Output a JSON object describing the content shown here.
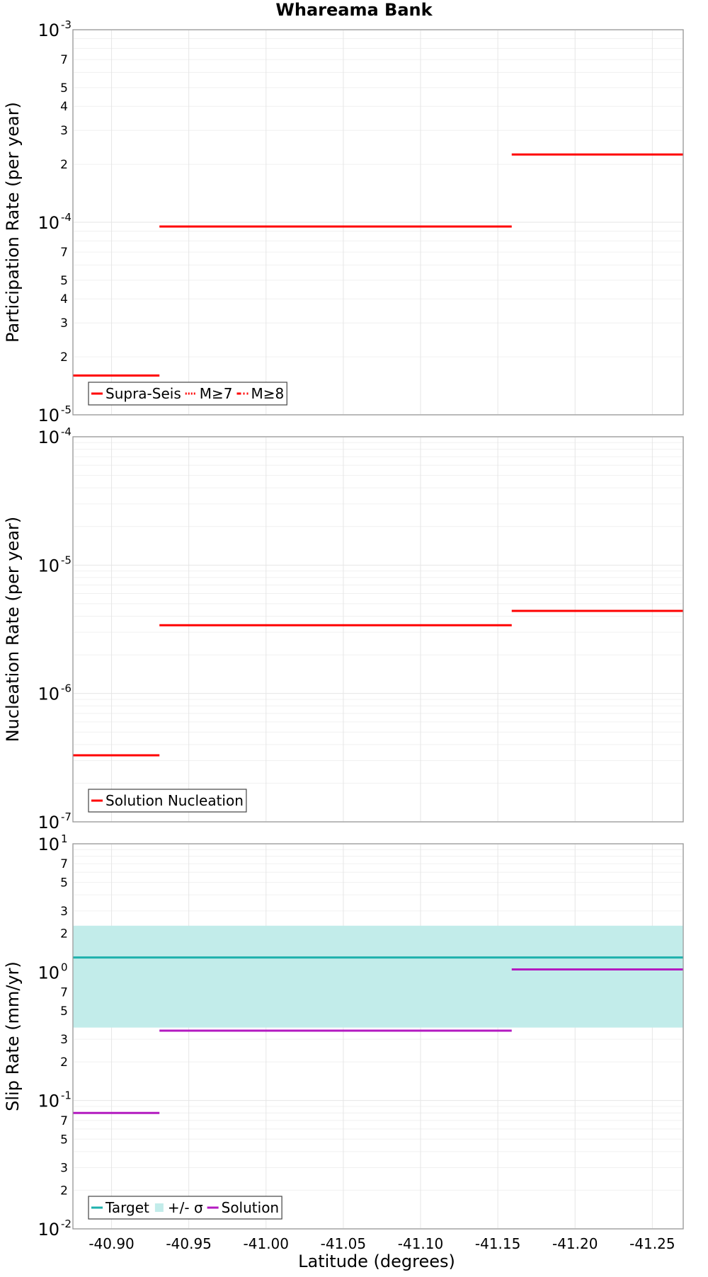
{
  "chart_title": "Whareama Bank",
  "x_axis": {
    "label": "Latitude (degrees)",
    "range": [
      -40.875,
      -41.27
    ],
    "ticks": [
      -40.9,
      -40.95,
      -41.0,
      -41.05,
      -41.1,
      -41.15,
      -41.2,
      -41.25
    ],
    "tick_labels": [
      "-40.90",
      "-40.95",
      "-41.00",
      "-41.05",
      "-41.10",
      "-41.15",
      "-41.20",
      "-41.25"
    ]
  },
  "chart_data": [
    {
      "type": "line",
      "ylabel": "Participation Rate (per year)",
      "yscale": "log",
      "ylim": [
        1e-05,
        0.001
      ],
      "grid": true,
      "legend_position": "bottom-left",
      "y_major_ticks": [
        {
          "mantissa": "10",
          "exponent": "-5"
        },
        {
          "mantissa": "10",
          "exponent": "-4"
        },
        {
          "mantissa": "10",
          "exponent": "-3"
        }
      ],
      "y_minor_labels": [
        "2",
        "3",
        "4",
        "5",
        "7"
      ],
      "series": [
        {
          "name": "Supra-Seis",
          "color": "#ff0000",
          "style": "solid",
          "segments": [
            {
              "x": [
                -40.875,
                -40.931
              ],
              "y": 1.6e-05
            },
            {
              "x": [
                -40.931,
                -41.159
              ],
              "y": 9.5e-05
            },
            {
              "x": [
                -41.159,
                -41.27
              ],
              "y": 0.000225
            }
          ]
        },
        {
          "name": "M≥7",
          "color": "#ff0000",
          "style": "dotted",
          "segments": []
        },
        {
          "name": "M≥8",
          "color": "#ff0000",
          "style": "dashdot",
          "segments": []
        }
      ]
    },
    {
      "type": "line",
      "ylabel": "Nucleation Rate (per year)",
      "yscale": "log",
      "ylim": [
        1e-07,
        0.0001
      ],
      "grid": true,
      "legend_position": "bottom-left",
      "y_major_ticks": [
        {
          "mantissa": "10",
          "exponent": "-7"
        },
        {
          "mantissa": "10",
          "exponent": "-6"
        },
        {
          "mantissa": "10",
          "exponent": "-5"
        },
        {
          "mantissa": "10",
          "exponent": "-4"
        }
      ],
      "y_minor_labels": [],
      "series": [
        {
          "name": "Solution Nucleation",
          "color": "#ff0000",
          "style": "solid",
          "segments": [
            {
              "x": [
                -40.875,
                -40.931
              ],
              "y": 3.3e-07
            },
            {
              "x": [
                -40.931,
                -41.159
              ],
              "y": 3.4e-06
            },
            {
              "x": [
                -41.159,
                -41.27
              ],
              "y": 4.4e-06
            }
          ]
        }
      ]
    },
    {
      "type": "line",
      "ylabel": "Slip Rate (mm/yr)",
      "yscale": "log",
      "ylim": [
        0.01,
        10
      ],
      "grid": true,
      "legend_position": "bottom-left",
      "y_major_ticks": [
        {
          "mantissa": "10",
          "exponent": "-2"
        },
        {
          "mantissa": "10",
          "exponent": "-1"
        },
        {
          "mantissa": "10",
          "exponent": "0"
        },
        {
          "mantissa": "10",
          "exponent": "1"
        }
      ],
      "y_minor_labels": [
        "2",
        "3",
        "5",
        "7"
      ],
      "band": {
        "name": "+/- σ",
        "color": "#c2ecea",
        "lower": 0.37,
        "upper": 2.3
      },
      "series": [
        {
          "name": "Target",
          "color": "#1fb1ad",
          "style": "solid",
          "segments": [
            {
              "x": [
                -40.875,
                -41.27
              ],
              "y": 1.3
            }
          ]
        },
        {
          "name": "Solution",
          "color": "#b31ac0",
          "style": "solid",
          "segments": [
            {
              "x": [
                -40.875,
                -40.931
              ],
              "y": 0.08
            },
            {
              "x": [
                -40.931,
                -41.159
              ],
              "y": 0.35
            },
            {
              "x": [
                -41.159,
                -41.27
              ],
              "y": 1.05
            }
          ]
        }
      ]
    }
  ]
}
